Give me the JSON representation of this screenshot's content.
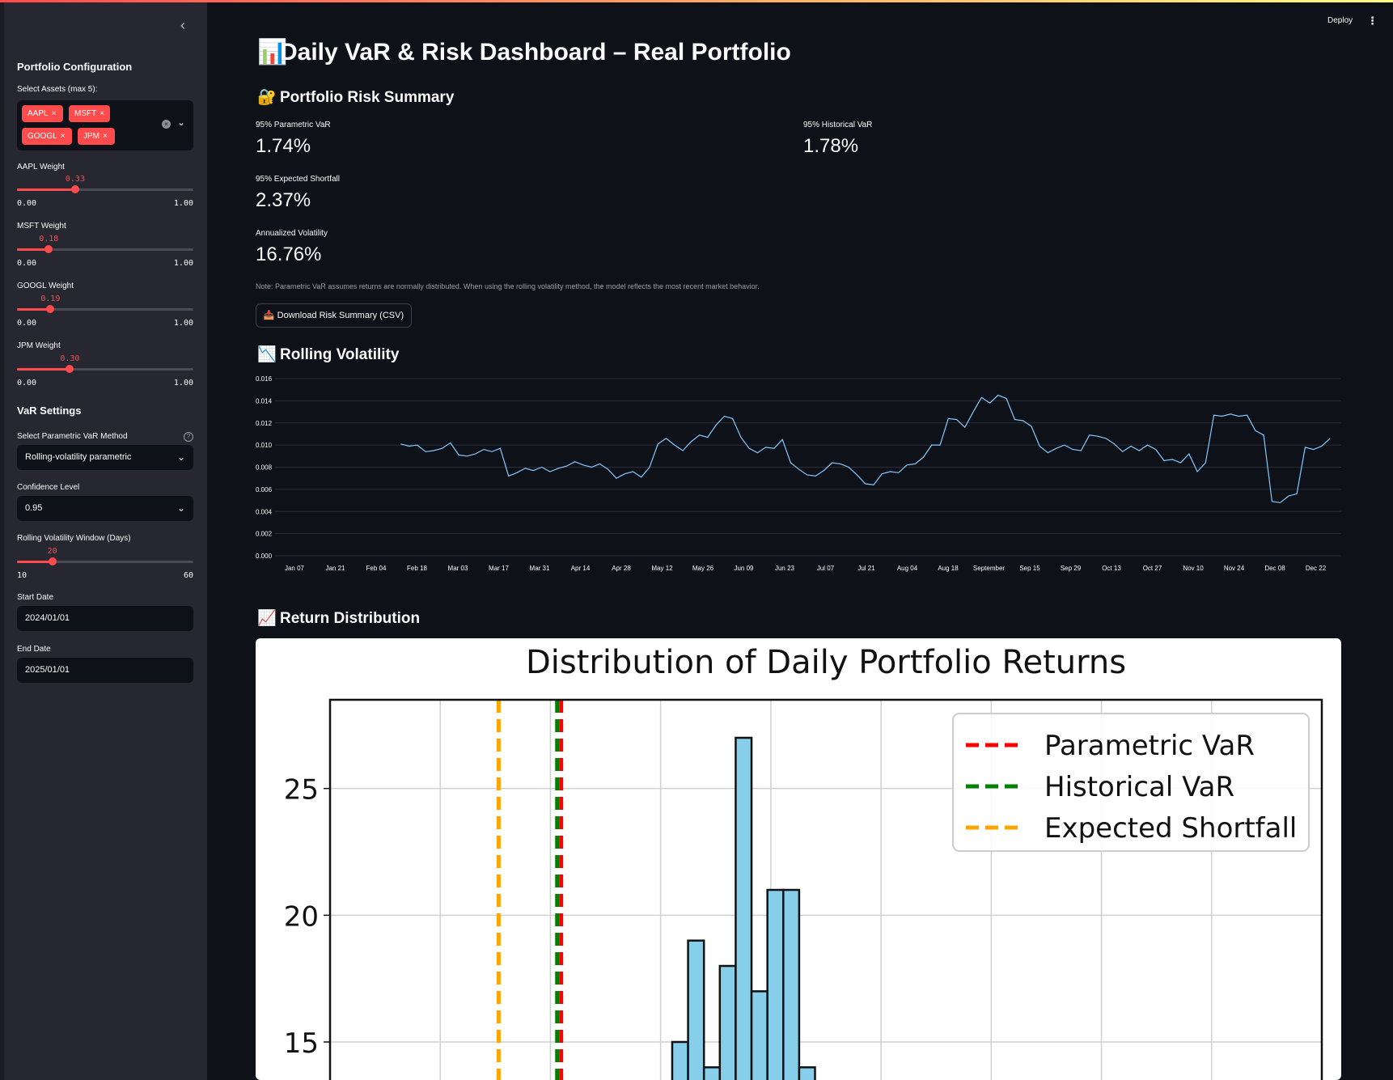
{
  "sidebar": {
    "title": "Portfolio Configuration",
    "assets_label": "Select Assets (max 5):",
    "assets": [
      "AAPL",
      "MSFT",
      "GOOGL",
      "JPM"
    ],
    "weights": [
      {
        "label": "AAPL Weight",
        "value": "0.33",
        "fraction": 0.33,
        "min": "0.00",
        "max": "1.00"
      },
      {
        "label": "MSFT Weight",
        "value": "0.18",
        "fraction": 0.18,
        "min": "0.00",
        "max": "1.00"
      },
      {
        "label": "GOOGL Weight",
        "value": "0.19",
        "fraction": 0.19,
        "min": "0.00",
        "max": "1.00"
      },
      {
        "label": "JPM Weight",
        "value": "0.30",
        "fraction": 0.3,
        "min": "0.00",
        "max": "1.00"
      }
    ],
    "var_settings_title": "VaR Settings",
    "method_label": "Select Parametric VaR Method",
    "method_value": "Rolling-volatility parametric",
    "confidence_label": "Confidence Level",
    "confidence_value": "0.95",
    "window_label": "Rolling Volatility Window (Days)",
    "window_value": "20",
    "window_fraction": 0.2,
    "window_min": "10",
    "window_max": "60",
    "start_label": "Start Date",
    "start_value": "2024/01/01",
    "end_label": "End Date",
    "end_value": "2025/01/01"
  },
  "header": {
    "deploy": "Deploy",
    "menu_icon": "kebab-menu-icon"
  },
  "main": {
    "title_icon": "📊",
    "title": "Daily VaR & Risk Dashboard – Real Portfolio",
    "summary_icon": "🔐",
    "summary_title": "Portfolio Risk Summary",
    "metrics": [
      {
        "label": "95% Parametric VaR",
        "value": "1.74%"
      },
      {
        "label": "95% Historical VaR",
        "value": "1.78%"
      },
      {
        "label": "95% Expected Shortfall",
        "value": "2.37%"
      },
      {
        "label": "Annualized Volatility",
        "value": "16.76%"
      }
    ],
    "note": "Note: Parametric VaR assumes returns are normally distributed. When using the rolling volatility method, the model reflects the most recent market behavior.",
    "download_icon": "📥",
    "download_label": "Download Risk Summary (CSV)",
    "vol_icon": "📉",
    "vol_title": "Rolling Volatility",
    "dist_icon": "📈",
    "dist_title": "Return Distribution"
  },
  "colors": {
    "accent": "#ff4b4b",
    "line": "#83c9ff",
    "bar": "#87ceeb",
    "param": "#ff0000",
    "hist": "#008000",
    "es": "#ffa500"
  },
  "chart_data": [
    {
      "type": "line",
      "title": "",
      "xlabel": "",
      "ylabel": "",
      "ylim": [
        0,
        0.016
      ],
      "yticks": [
        "0.016",
        "0.014",
        "0.012",
        "0.010",
        "0.008",
        "0.006",
        "0.004",
        "0.002",
        "0.000"
      ],
      "xticks": [
        "Jan 07",
        "Jan 21",
        "Feb 04",
        "Feb 18",
        "Mar 03",
        "Mar 17",
        "Mar 31",
        "Apr 14",
        "Apr 28",
        "May 12",
        "May 26",
        "Jun 09",
        "Jun 23",
        "Jul 07",
        "Jul 21",
        "Aug 04",
        "Aug 18",
        "September",
        "Sep 15",
        "Sep 29",
        "Oct 13",
        "Oct 27",
        "Nov 10",
        "Nov 24",
        "Dec 08",
        "Dec 22"
      ],
      "x_start": 2.6,
      "x_end": 25.35,
      "values": [
        0.0101,
        0.0099,
        0.01,
        0.0094,
        0.0095,
        0.0097,
        0.0102,
        0.0091,
        0.009,
        0.0092,
        0.0096,
        0.0094,
        0.0097,
        0.0072,
        0.0075,
        0.0079,
        0.0077,
        0.008,
        0.0076,
        0.0079,
        0.0081,
        0.0085,
        0.0082,
        0.008,
        0.0083,
        0.0078,
        0.007,
        0.0074,
        0.0076,
        0.0071,
        0.008,
        0.0101,
        0.0106,
        0.01,
        0.0095,
        0.0103,
        0.0109,
        0.0107,
        0.0118,
        0.0126,
        0.0124,
        0.0107,
        0.0097,
        0.0093,
        0.0098,
        0.0097,
        0.0105,
        0.0084,
        0.0078,
        0.0073,
        0.0072,
        0.0077,
        0.0084,
        0.0083,
        0.008,
        0.0073,
        0.0065,
        0.0064,
        0.0074,
        0.0076,
        0.0075,
        0.0082,
        0.0083,
        0.0089,
        0.01,
        0.01,
        0.0124,
        0.0123,
        0.0116,
        0.013,
        0.0143,
        0.0138,
        0.0145,
        0.0142,
        0.0123,
        0.0122,
        0.0117,
        0.0099,
        0.0093,
        0.0097,
        0.01,
        0.0096,
        0.0095,
        0.0109,
        0.0108,
        0.0106,
        0.0101,
        0.0094,
        0.0099,
        0.0095,
        0.01,
        0.0096,
        0.0086,
        0.0087,
        0.0084,
        0.0092,
        0.0076,
        0.0084,
        0.0127,
        0.0126,
        0.0128,
        0.0126,
        0.0127,
        0.0113,
        0.0109,
        0.0049,
        0.0048,
        0.0054,
        0.0056,
        0.0098,
        0.0096,
        0.0099,
        0.0106
      ]
    },
    {
      "type": "bar",
      "title": "Distribution of Daily Portfolio Returns",
      "xlabel": "",
      "ylabel": "",
      "yticks": [
        "25",
        "20",
        "15"
      ],
      "ylim": [
        13.5,
        28.5
      ],
      "legend": [
        "Parametric VaR",
        "Historical VaR",
        "Expected Shortfall"
      ],
      "legend_position": "top-right",
      "bars": [
        {
          "left": 0.345,
          "width": 0.016,
          "value": 15
        },
        {
          "left": 0.361,
          "width": 0.016,
          "value": 19
        },
        {
          "left": 0.377,
          "width": 0.016,
          "value": 14
        },
        {
          "left": 0.393,
          "width": 0.016,
          "value": 18
        },
        {
          "left": 0.409,
          "width": 0.016,
          "value": 27
        },
        {
          "left": 0.425,
          "width": 0.016,
          "value": 17
        },
        {
          "left": 0.441,
          "width": 0.016,
          "value": 21
        },
        {
          "left": 0.457,
          "width": 0.016,
          "value": 21
        },
        {
          "left": 0.473,
          "width": 0.016,
          "value": 14
        }
      ],
      "lines": {
        "parametric": 0.233,
        "historical": 0.229,
        "shortfall": 0.17
      }
    }
  ]
}
